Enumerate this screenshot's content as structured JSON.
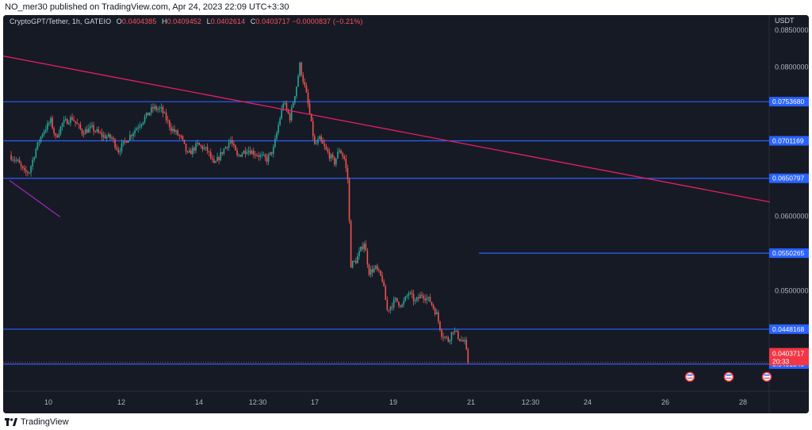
{
  "header": {
    "published": "NO_mer30 published on TradingView.com, Apr 24, 2023 22:09 UTC+3:30"
  },
  "legend": {
    "symbol": "CryptoGPT/Tether, 1h, GATEIO",
    "o_label": "O",
    "o": "0.0404385",
    "h_label": "H",
    "h": "0.0409452",
    "l_label": "L",
    "l": "0.0402614",
    "c_label": "C",
    "c": "0.0403717",
    "change": "−0.0000837 (−0.21%)"
  },
  "footer": {
    "brand": "TradingView",
    "logo_icon": "tradingview-logo-icon"
  },
  "colors": {
    "background": "#161a25",
    "up": "#26a69a",
    "down": "#ef5350",
    "level_line": "#2962ff",
    "trend_line": "#e91e63",
    "purple_line": "#9c27b0",
    "price_tag": "#f23645"
  },
  "chart_data": {
    "type": "candlestick",
    "currency": "USDT",
    "ylim": [
      0.0365,
      0.087
    ],
    "y_ticks": [
      "0.0850000",
      "0.0800000",
      "0.0600000",
      "0.0500000"
    ],
    "x_ticks": [
      "10",
      "12",
      "14",
      "12:30",
      "17",
      "19",
      "21",
      "12:30",
      "24",
      "26",
      "28"
    ],
    "horizontal_levels": [
      {
        "value": 0.075368,
        "label": "0.0753680"
      },
      {
        "value": 0.0701169,
        "label": "0.0701169"
      },
      {
        "value": 0.0650797,
        "label": "0.0650797"
      },
      {
        "value": 0.0550265,
        "label": "0.0550265"
      },
      {
        "value": 0.0448168,
        "label": "0.0448168"
      },
      {
        "value": 0.040134,
        "label": "0.0401340"
      }
    ],
    "last_price": {
      "value": 0.0403717,
      "label": "0.0403717",
      "countdown": "20:33"
    },
    "trend_line": [
      {
        "bar": 0,
        "value": 0.0815
      },
      {
        "bar": 336,
        "value": 0.0619
      }
    ],
    "purple_line": [
      {
        "bar": 0,
        "value": 0.0648
      },
      {
        "bar": 21,
        "value": 0.0599
      }
    ],
    "price_path": [
      [
        0,
        0.0682
      ],
      [
        5,
        0.0673
      ],
      [
        9,
        0.0658
      ],
      [
        12,
        0.066
      ],
      [
        16,
        0.069
      ],
      [
        20,
        0.0712
      ],
      [
        25,
        0.0728
      ],
      [
        28,
        0.0705
      ],
      [
        32,
        0.0724
      ],
      [
        38,
        0.0732
      ],
      [
        44,
        0.0713
      ],
      [
        50,
        0.0718
      ],
      [
        56,
        0.0708
      ],
      [
        62,
        0.0705
      ],
      [
        66,
        0.0688
      ],
      [
        70,
        0.07
      ],
      [
        76,
        0.0716
      ],
      [
        82,
        0.0732
      ],
      [
        87,
        0.0745
      ],
      [
        92,
        0.0743
      ],
      [
        98,
        0.0718
      ],
      [
        104,
        0.0705
      ],
      [
        108,
        0.0682
      ],
      [
        114,
        0.0696
      ],
      [
        120,
        0.0688
      ],
      [
        124,
        0.0668
      ],
      [
        130,
        0.069
      ],
      [
        134,
        0.0702
      ],
      [
        138,
        0.068
      ],
      [
        144,
        0.069
      ],
      [
        150,
        0.0683
      ],
      [
        156,
        0.0676
      ],
      [
        160,
        0.069
      ],
      [
        163,
        0.0722
      ],
      [
        166,
        0.0753
      ],
      [
        170,
        0.0732
      ],
      [
        174,
        0.0775
      ],
      [
        176,
        0.0803
      ],
      [
        180,
        0.0763
      ],
      [
        182,
        0.0737
      ],
      [
        185,
        0.0695
      ],
      [
        188,
        0.0703
      ],
      [
        192,
        0.0688
      ],
      [
        197,
        0.0672
      ],
      [
        200,
        0.069
      ],
      [
        203,
        0.0677
      ],
      [
        205,
        0.065
      ],
      [
        207,
        0.0535
      ],
      [
        210,
        0.054
      ],
      [
        215,
        0.0565
      ],
      [
        218,
        0.0525
      ],
      [
        222,
        0.053
      ],
      [
        226,
        0.0515
      ],
      [
        229,
        0.0474
      ],
      [
        234,
        0.0487
      ],
      [
        238,
        0.048
      ],
      [
        242,
        0.0497
      ],
      [
        246,
        0.0485
      ],
      [
        250,
        0.0495
      ],
      [
        255,
        0.0486
      ],
      [
        259,
        0.0468
      ],
      [
        262,
        0.0442
      ],
      [
        266,
        0.0433
      ],
      [
        269,
        0.0448
      ],
      [
        273,
        0.0435
      ],
      [
        276,
        0.043
      ],
      [
        278,
        0.0404
      ]
    ]
  }
}
